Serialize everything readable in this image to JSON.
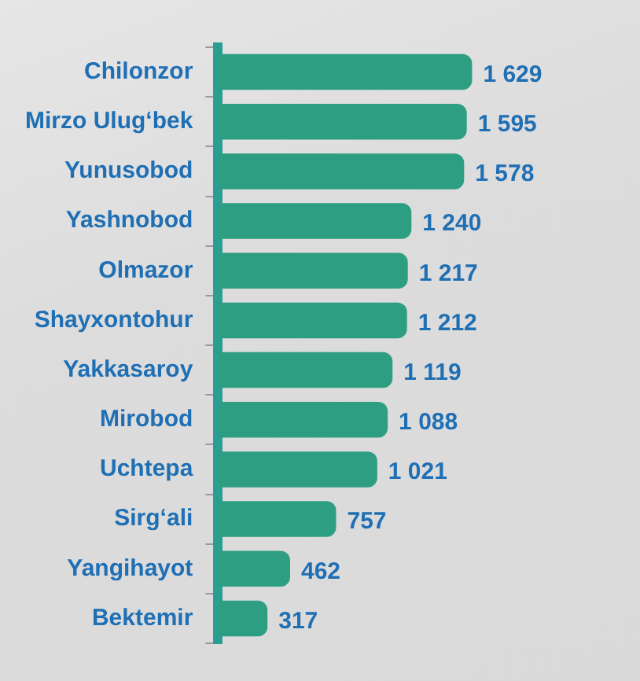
{
  "chart_data": {
    "type": "bar",
    "orientation": "horizontal",
    "categories": [
      "Chilonzor",
      "Mirzo Ulug‘bek",
      "Yunusobod",
      "Yashnobod",
      "Olmazor",
      "Shayxontohur",
      "Yakkasaroy",
      "Mirobod",
      "Uchtepa",
      "Sirg‘ali",
      "Yangihayot",
      "Bektemir"
    ],
    "values": [
      1629,
      1595,
      1578,
      1240,
      1217,
      1212,
      1119,
      1088,
      1021,
      757,
      462,
      317
    ],
    "value_labels": [
      "1 629",
      "1 595",
      "1 578",
      "1 240",
      "1 217",
      "1 212",
      "1 119",
      "1 088",
      "1 021",
      "757",
      "462",
      "317"
    ],
    "color": "#2e9e82"
  }
}
